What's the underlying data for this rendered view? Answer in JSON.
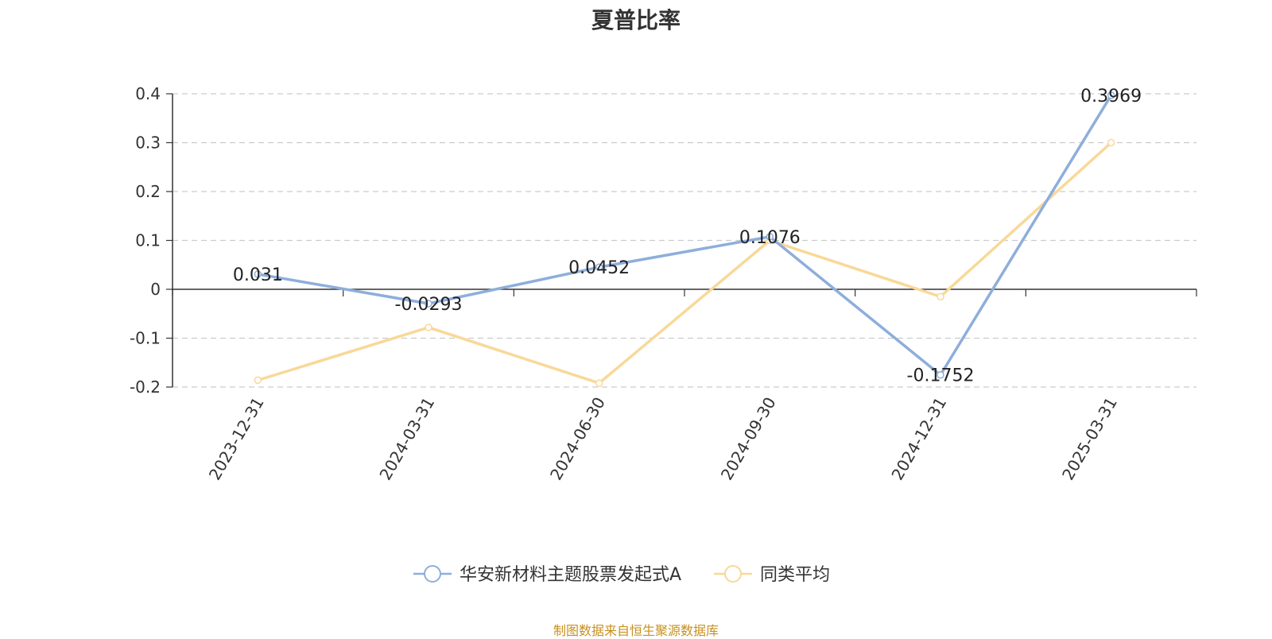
{
  "chart_data": {
    "type": "line",
    "title": "夏普比率",
    "categories": [
      "2023-12-31",
      "2024-03-31",
      "2024-06-30",
      "2024-09-30",
      "2024-12-31",
      "2025-03-31"
    ],
    "series": [
      {
        "name": "华安新材料主题股票发起式A",
        "color": "#8eaedb",
        "values": [
          0.031,
          -0.0293,
          0.0452,
          0.1076,
          -0.1752,
          0.3969
        ],
        "labels": [
          "0.031",
          "-0.0293",
          "0.0452",
          "0.1076",
          "-0.1752",
          "0.3969"
        ],
        "show_labels": true
      },
      {
        "name": "同类平均",
        "color": "#f9d898",
        "values": [
          -0.186,
          -0.078,
          -0.192,
          0.1,
          -0.015,
          0.3
        ],
        "show_labels": false
      }
    ],
    "y_ticks": [
      0.4,
      0.3,
      0.2,
      0.1,
      0,
      -0.1,
      -0.2
    ],
    "y_tick_labels": [
      "0.4",
      "0.3",
      "0.2",
      "0.1",
      "0",
      "-0.1",
      "-0.2"
    ],
    "ylim": [
      -0.2,
      0.4
    ],
    "grid": true,
    "legend_position": "bottom-center"
  },
  "footer": {
    "source": "制图数据来自恒生聚源数据库"
  }
}
